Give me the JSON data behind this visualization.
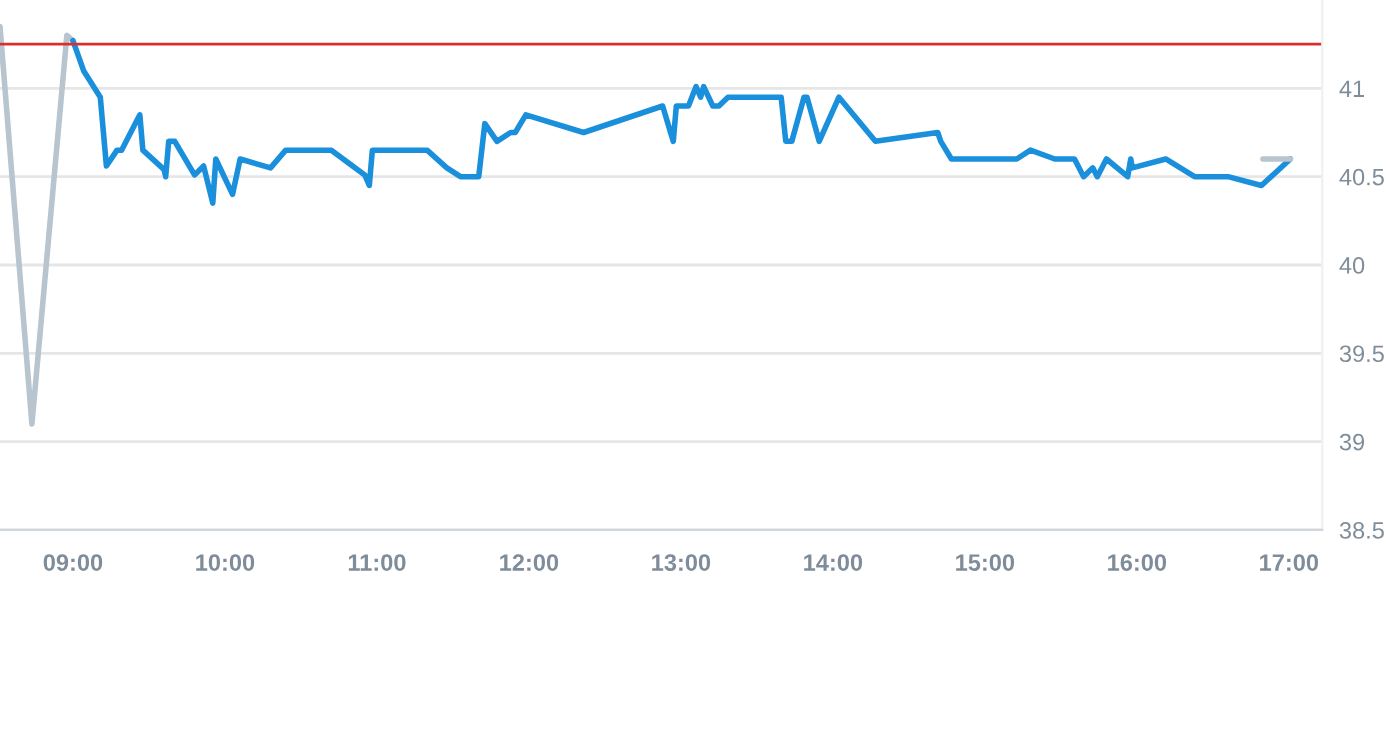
{
  "chart_data": {
    "type": "line",
    "xlim": [
      8.52,
      17.22
    ],
    "ylim": [
      38.5,
      41.5
    ],
    "xticks": [
      {
        "value": 9,
        "label": "09:00"
      },
      {
        "value": 10,
        "label": "10:00"
      },
      {
        "value": 11,
        "label": "11:00"
      },
      {
        "value": 12,
        "label": "12:00"
      },
      {
        "value": 13,
        "label": "13:00"
      },
      {
        "value": 14,
        "label": "14:00"
      },
      {
        "value": 15,
        "label": "15:00"
      },
      {
        "value": 16,
        "label": "16:00"
      },
      {
        "value": 17,
        "label": "17:00"
      }
    ],
    "yticks": [
      38.5,
      39,
      39.5,
      40,
      40.5,
      41
    ],
    "grid": "y",
    "marker": "none",
    "line_style": "solid",
    "ref_lines": [
      {
        "axis": "y",
        "value": 41.25,
        "color": "#d9302f"
      }
    ],
    "series": [
      {
        "color": "#b8c4ce",
        "x": [
          8.52,
          8.73,
          8.96,
          9.0
        ],
        "values": [
          41.35,
          39.1,
          41.3,
          41.27
        ]
      },
      {
        "color": "#1a8fdc",
        "x": [
          9.0,
          9.07,
          9.18,
          9.22,
          9.29,
          9.32,
          9.44,
          9.46,
          9.6,
          9.61,
          9.63,
          9.67,
          9.8,
          9.86,
          9.92,
          9.94,
          10.05,
          10.1,
          10.3,
          10.4,
          10.7,
          10.92,
          10.95,
          10.97,
          11.33,
          11.46,
          11.55,
          11.67,
          11.71,
          11.79,
          11.88,
          11.91,
          11.98,
          12.36,
          12.88,
          12.95,
          12.97,
          13.05,
          13.1,
          13.13,
          13.15,
          13.21,
          13.25,
          13.31,
          13.66,
          13.69,
          13.73,
          13.81,
          13.83,
          13.91,
          14.04,
          14.28,
          14.69,
          14.71,
          14.78,
          15.21,
          15.3,
          15.46,
          15.59,
          15.65,
          15.71,
          15.74,
          15.8,
          15.94,
          15.96,
          15.97,
          16.19,
          16.38,
          16.6,
          16.82,
          17.01
        ],
        "values": [
          41.27,
          41.1,
          40.95,
          40.56,
          40.65,
          40.65,
          40.85,
          40.65,
          40.54,
          40.5,
          40.7,
          40.7,
          40.51,
          40.56,
          40.35,
          40.6,
          40.4,
          40.6,
          40.55,
          40.65,
          40.65,
          40.51,
          40.45,
          40.65,
          40.65,
          40.55,
          40.5,
          40.5,
          40.8,
          40.7,
          40.75,
          40.75,
          40.85,
          40.75,
          40.9,
          40.7,
          40.9,
          40.9,
          41.01,
          40.95,
          41.01,
          40.9,
          40.9,
          40.95,
          40.95,
          40.7,
          40.7,
          40.95,
          40.95,
          40.7,
          40.95,
          40.7,
          40.75,
          40.7,
          40.6,
          40.6,
          40.65,
          40.6,
          40.6,
          40.5,
          40.55,
          40.5,
          40.6,
          40.5,
          40.6,
          40.55,
          40.6,
          40.5,
          40.5,
          40.45,
          40.6
        ]
      },
      {
        "color": "#b8c4ce",
        "x": [
          16.83,
          17.01
        ],
        "values": [
          40.6,
          40.6
        ]
      }
    ]
  }
}
